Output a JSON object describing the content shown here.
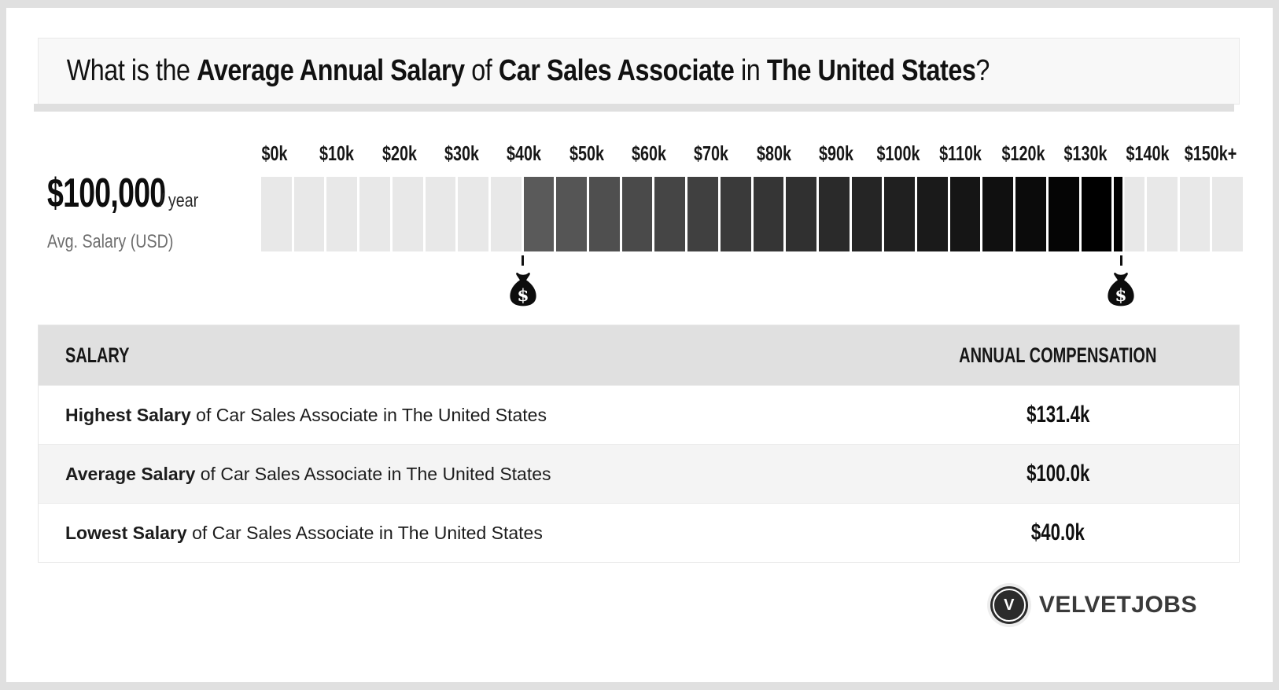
{
  "title": {
    "parts": [
      {
        "text": "What is the ",
        "bold": false
      },
      {
        "text": "Average Annual Salary",
        "bold": true
      },
      {
        "text": " of ",
        "bold": false
      },
      {
        "text": "Car Sales Associate",
        "bold": true
      },
      {
        "text": " in ",
        "bold": false
      },
      {
        "text": "The United States",
        "bold": true
      },
      {
        "text": "?",
        "bold": false
      }
    ]
  },
  "salary_summary": {
    "amount": "$100,000",
    "per": "/ year",
    "caption": "Avg. Salary (USD)"
  },
  "chart_data": {
    "type": "bar",
    "tick_labels": [
      "$0k",
      "$10k",
      "$20k",
      "$30k",
      "$40k",
      "$50k",
      "$60k",
      "$70k",
      "$80k",
      "$90k",
      "$100k",
      "$110k",
      "$120k",
      "$130k",
      "$140k",
      "$150k+"
    ],
    "xlim": [
      0,
      150000
    ],
    "tick_step_usd": 10000,
    "segment_step_usd": 5000,
    "lowest_usd": 40000,
    "average_usd": 100000,
    "highest_usd": 131400,
    "marker_symbol": "$",
    "markers": [
      {
        "name": "lowest-salary",
        "value_usd": 40000
      },
      {
        "name": "highest-salary",
        "value_usd": 131400
      }
    ]
  },
  "table": {
    "headers": [
      "SALARY",
      "ANNUAL COMPENSATION"
    ],
    "rows": [
      {
        "bold": "Highest Salary",
        "rest": " of Car Sales Associate in The United States",
        "value": "$131.4k"
      },
      {
        "bold": "Average Salary",
        "rest": " of Car Sales Associate in The United States",
        "value": "$100.0k"
      },
      {
        "bold": "Lowest Salary",
        "rest": " of Car Sales Associate in The United States",
        "value": "$40.0k"
      }
    ]
  },
  "footer": {
    "brand": "VELVETJOBS",
    "monogram": "V"
  },
  "colors": {
    "frame": "#e0e0e0",
    "title_box_bg": "#f8f8f8",
    "segment_light": "#e8e8e8",
    "gradient_start": "#5a5a5a",
    "gradient_end": "#000000",
    "table_header_bg": "#e0e0e0",
    "row_alt_bg": "#f4f4f4",
    "logo_bg": "#2b2b2b"
  }
}
